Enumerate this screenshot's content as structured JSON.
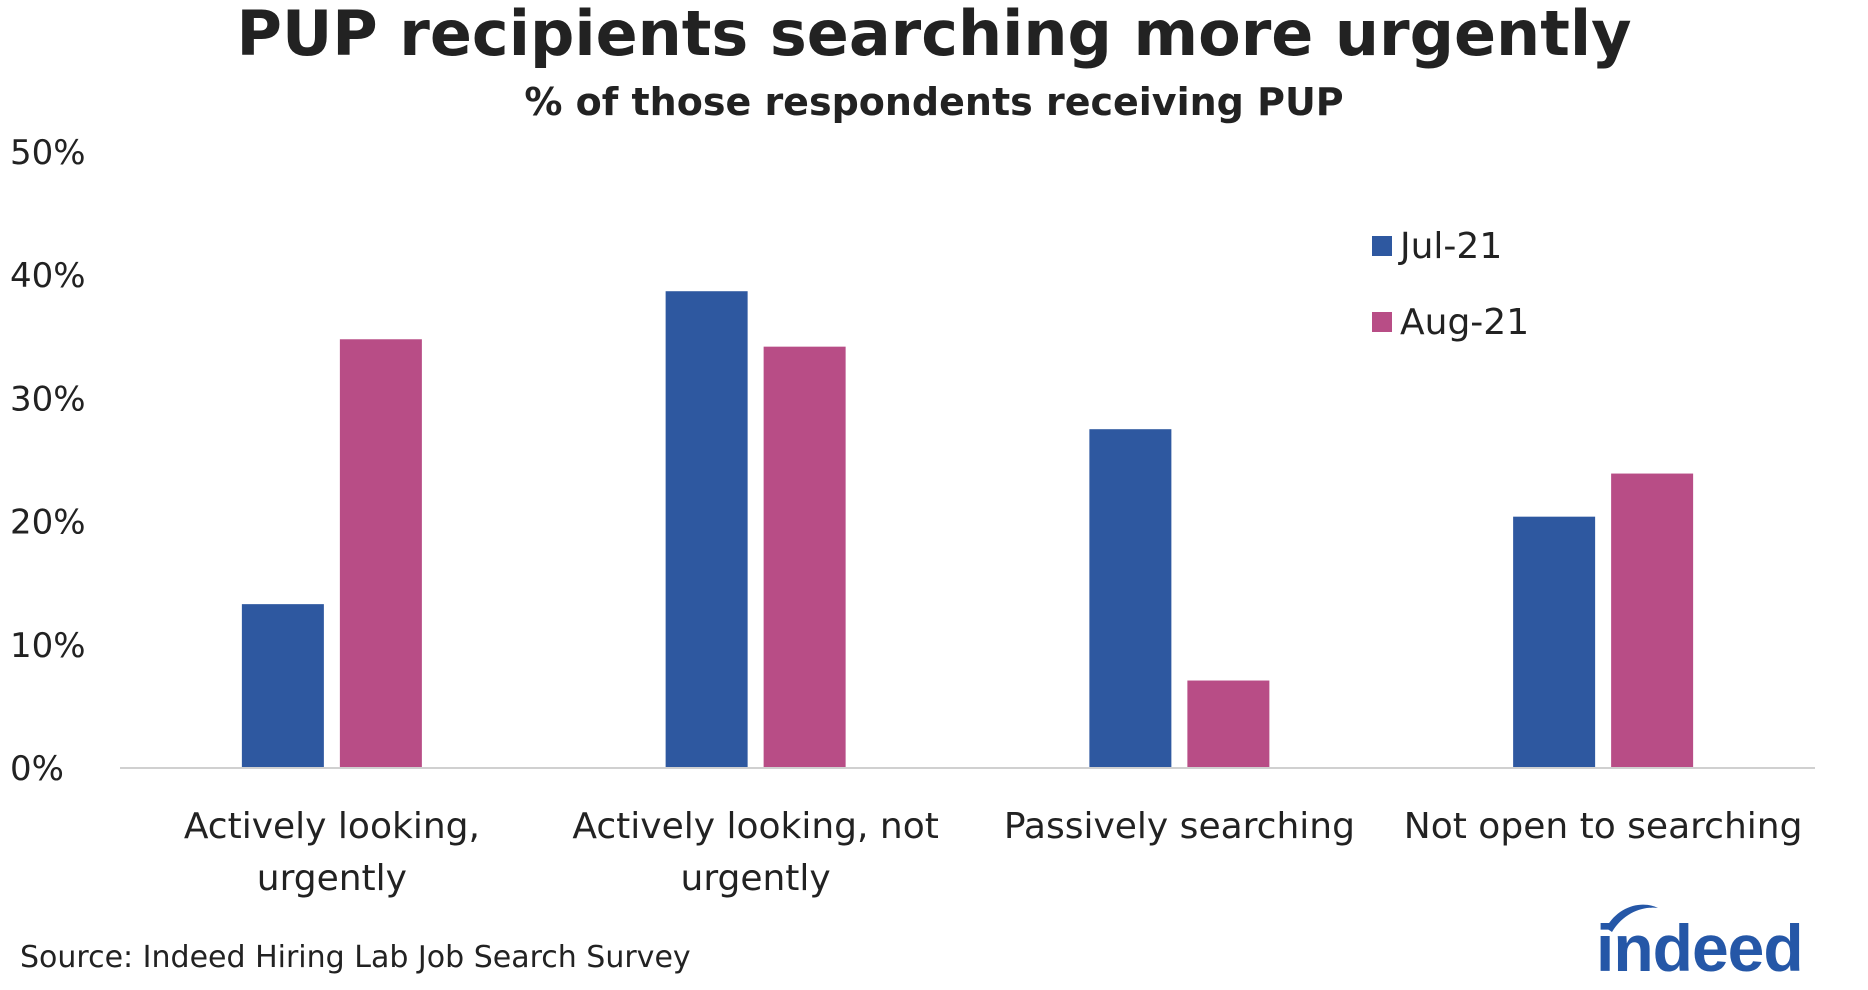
{
  "chart_data": {
    "type": "bar",
    "title": "PUP recipients searching more urgently",
    "subtitle": "% of those respondents receiving PUP",
    "categories": [
      [
        "Actively looking,",
        "urgently"
      ],
      [
        "Actively looking, not",
        "urgently"
      ],
      [
        "Passively searching"
      ],
      [
        "Not open to searching"
      ]
    ],
    "series": [
      {
        "name": "Jul-21",
        "color": "#2e58a0",
        "values": [
          13.3,
          38.7,
          27.5,
          20.4
        ]
      },
      {
        "name": "Aug-21",
        "color": "#b84d86",
        "values": [
          34.8,
          34.2,
          7.1,
          23.9
        ]
      }
    ],
    "ylim": [
      0,
      50
    ],
    "yticks": [
      0,
      10,
      20,
      30,
      40,
      50
    ],
    "ytick_labels": [
      "0%",
      "10%",
      "20%",
      "30%",
      "40%",
      "50%"
    ],
    "legend_position": "top-right",
    "grid": false,
    "source": "Source: Indeed Hiring Lab Job Search Survey"
  },
  "branding": {
    "logo_text": "indeed",
    "logo_color": "#2557a7"
  }
}
